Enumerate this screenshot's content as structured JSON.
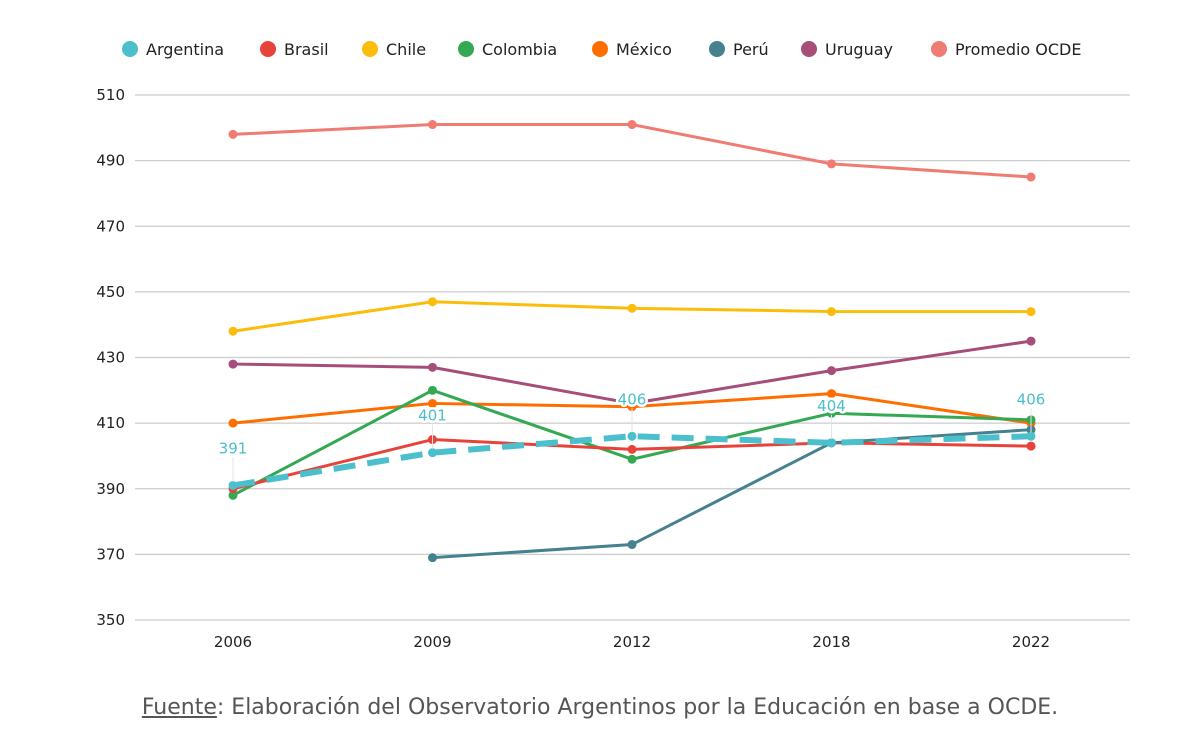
{
  "chart_data": {
    "type": "line",
    "title": "",
    "xlabel": "",
    "ylabel": "",
    "categories": [
      "2006",
      "2009",
      "2012",
      "2018",
      "2022"
    ],
    "ylim": [
      350,
      510
    ],
    "yticks": [
      350,
      370,
      390,
      410,
      430,
      450,
      470,
      490,
      510
    ],
    "grid": "horizontal",
    "legend_position": "top",
    "series": [
      {
        "name": "Argentina",
        "color": "#4bbfcc",
        "dashed": true,
        "values": [
          391,
          401,
          406,
          404,
          406
        ],
        "data_labels": [
          "391",
          "401",
          "406",
          "404",
          "406"
        ]
      },
      {
        "name": "Brasil",
        "color": "#e8433a",
        "values": [
          390,
          405,
          402,
          404,
          403
        ]
      },
      {
        "name": "Chile",
        "color": "#fbbd0a",
        "values": [
          438,
          447,
          445,
          444,
          444
        ]
      },
      {
        "name": "Colombia",
        "color": "#34a853",
        "values": [
          388,
          420,
          399,
          413,
          411
        ]
      },
      {
        "name": "México",
        "color": "#ff6d01",
        "values": [
          410,
          416,
          415,
          419,
          410
        ]
      },
      {
        "name": "Perú",
        "color": "#45818e",
        "values": [
          null,
          369,
          373,
          404,
          408
        ]
      },
      {
        "name": "Uruguay",
        "color": "#a64d79",
        "values": [
          428,
          427,
          416,
          426,
          435
        ]
      },
      {
        "name": "Promedio OCDE",
        "color": "#f07b72",
        "values": [
          498,
          501,
          501,
          489,
          485
        ]
      }
    ]
  },
  "source": {
    "label": "Fuente",
    "text": ": Elaboración del Observatorio Argentinos por la Educación en base a OCDE."
  }
}
